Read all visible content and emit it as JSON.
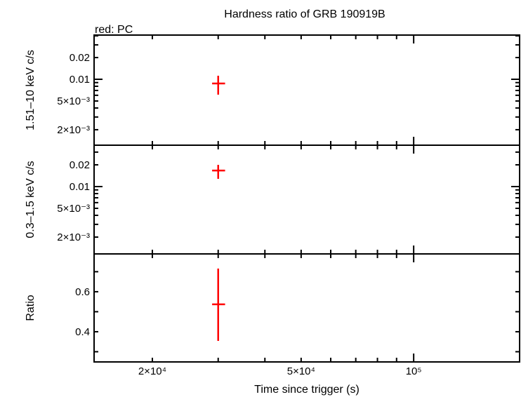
{
  "chart_data": [
    {
      "type": "scatter",
      "title": "Hardness ratio of GRB 190919B",
      "legend_note": "red: PC",
      "ylabel": "1.51–10 keV c/s",
      "yscale": "log",
      "ylim": [
        0.00122,
        0.041
      ],
      "yticks": [
        {
          "v": 0.02,
          "label": "0.02"
        },
        {
          "v": 0.01,
          "label": "0.01"
        },
        {
          "v": 0.005,
          "label": "5×10⁻³"
        },
        {
          "v": 0.002,
          "label": "2×10⁻³"
        }
      ],
      "series": [
        {
          "color": "#ff0000",
          "points": [
            {
              "x": 30000,
              "xlo": 28900,
              "xhi": 31300,
              "y": 0.00875,
              "ylo": 0.00612,
              "yhi": 0.0112
            }
          ]
        }
      ]
    },
    {
      "type": "scatter",
      "ylabel": "0.3–1.5 keV c/s",
      "yscale": "log",
      "ylim": [
        0.00117,
        0.0374
      ],
      "yticks": [
        {
          "v": 0.02,
          "label": "0.02"
        },
        {
          "v": 0.01,
          "label": "0.01"
        },
        {
          "v": 0.005,
          "label": "5×10⁻³"
        },
        {
          "v": 0.002,
          "label": "2×10⁻³"
        }
      ],
      "series": [
        {
          "color": "#ff0000",
          "points": [
            {
              "x": 30000,
              "xlo": 28900,
              "xhi": 31300,
              "y": 0.0167,
              "ylo": 0.0128,
              "yhi": 0.02
            }
          ]
        }
      ]
    },
    {
      "type": "scatter",
      "ylabel": "Ratio",
      "yscale": "linear",
      "ylim": [
        0.249,
        0.789
      ],
      "yticks": [
        {
          "v": 0.6,
          "label": "0.6"
        },
        {
          "v": 0.4,
          "label": "0.4"
        }
      ],
      "series": [
        {
          "color": "#ff0000",
          "points": [
            {
              "x": 30000,
              "xlo": 28900,
              "xhi": 31300,
              "y": 0.537,
              "ylo": 0.354,
              "yhi": 0.716
            }
          ]
        }
      ]
    }
  ],
  "x_axis": {
    "label": "Time since trigger (s)",
    "scale": "log",
    "xlim": [
      13970,
      192000
    ],
    "ticks": [
      {
        "v": 20000,
        "label": "2×10⁴"
      },
      {
        "v": 50000,
        "label": "5×10⁴"
      },
      {
        "v": 100000,
        "label": "10⁵"
      }
    ]
  }
}
